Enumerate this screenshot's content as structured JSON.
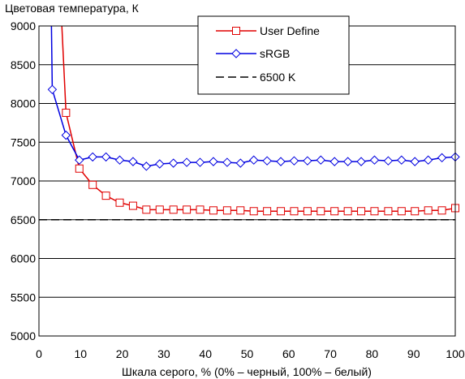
{
  "chart_data": {
    "type": "line",
    "title": "",
    "ylabel": "Цветовая температура, К",
    "xlabel": "Шкала серого, % (0% – черный, 100% – белый)",
    "xlim": [
      0,
      100
    ],
    "ylim": [
      5000,
      9000
    ],
    "x_ticks": [
      0,
      10,
      20,
      30,
      40,
      50,
      60,
      70,
      80,
      90,
      100
    ],
    "y_ticks": [
      5000,
      5500,
      6000,
      6500,
      7000,
      7500,
      8000,
      8500,
      9000
    ],
    "x_tick_labels": [
      "0",
      "10",
      "20",
      "30",
      "40",
      "50",
      "60",
      "70",
      "80",
      "90",
      "100"
    ],
    "y_tick_labels": [
      "5000",
      "5500",
      "6000",
      "6500",
      "7000",
      "7500",
      "8000",
      "8500",
      "9000"
    ],
    "grid": "horizontal",
    "legend_position": "top-center",
    "series": [
      {
        "name": "User Define",
        "color": "#e00000",
        "marker": "square",
        "x": [
          5.5,
          6.5,
          9.7,
          12.9,
          16.1,
          19.4,
          22.6,
          25.8,
          29.0,
          32.3,
          35.5,
          38.7,
          41.9,
          45.2,
          48.4,
          51.6,
          54.8,
          58.1,
          61.3,
          64.5,
          67.7,
          71.0,
          74.2,
          77.4,
          80.6,
          83.9,
          87.1,
          90.3,
          93.5,
          96.8,
          100.0
        ],
        "y": [
          9000,
          7880,
          7160,
          6950,
          6810,
          6720,
          6680,
          6630,
          6630,
          6630,
          6630,
          6630,
          6620,
          6620,
          6620,
          6610,
          6610,
          6610,
          6610,
          6610,
          6610,
          6610,
          6610,
          6610,
          6610,
          6610,
          6610,
          6610,
          6620,
          6620,
          6650
        ],
        "marker_start": 1
      },
      {
        "name": "sRGB",
        "color": "#0000e0",
        "marker": "diamond",
        "x": [
          3.0,
          3.2,
          6.5,
          9.7,
          12.9,
          16.1,
          19.4,
          22.6,
          25.8,
          29.0,
          32.3,
          35.5,
          38.7,
          41.9,
          45.2,
          48.4,
          51.6,
          54.8,
          58.1,
          61.3,
          64.5,
          67.7,
          71.0,
          74.2,
          77.4,
          80.6,
          83.9,
          87.1,
          90.3,
          93.5,
          96.8,
          100.0
        ],
        "y": [
          9000,
          8180,
          7590,
          7270,
          7310,
          7310,
          7270,
          7250,
          7190,
          7220,
          7230,
          7240,
          7240,
          7250,
          7240,
          7230,
          7270,
          7260,
          7250,
          7260,
          7260,
          7270,
          7250,
          7250,
          7250,
          7270,
          7260,
          7270,
          7250,
          7270,
          7300,
          7310
        ],
        "marker_start": 1
      },
      {
        "name": "6500 K",
        "color": "#000000",
        "marker": "none",
        "dashed": true,
        "x": [
          0,
          100
        ],
        "y": [
          6500,
          6500
        ],
        "marker_start": 0
      }
    ]
  }
}
